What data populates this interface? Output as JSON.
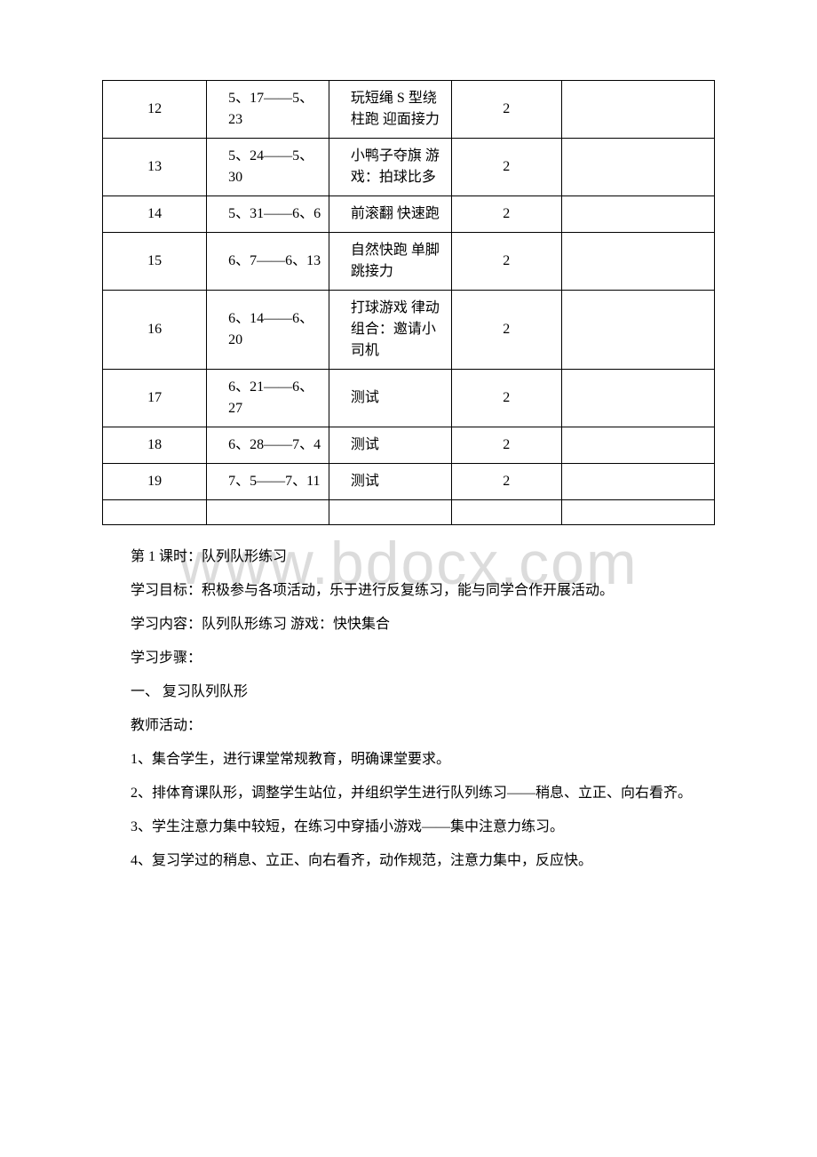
{
  "watermark": "www.bdocx.com",
  "table": {
    "columns_count": 5,
    "rows": [
      {
        "c1": "12",
        "c2": "5、17——5、23",
        "c3": "玩短绳 S 型绕柱跑 迎面接力",
        "c4": "2",
        "c5": ""
      },
      {
        "c1": "13",
        "c2": "5、24——5、30",
        "c3": "小鸭子夺旗 游戏：拍球比多",
        "c4": "2",
        "c5": ""
      },
      {
        "c1": "14",
        "c2": "5、31——6、6",
        "c3": "前滚翻 快速跑",
        "c4": "2",
        "c5": ""
      },
      {
        "c1": "15",
        "c2": "6、7——6、13",
        "c3": "自然快跑 单脚跳接力",
        "c4": "2",
        "c5": ""
      },
      {
        "c1": "16",
        "c2": "6、14——6、20",
        "c3": "打球游戏 律动组合：邀请小司机",
        "c4": "2",
        "c5": ""
      },
      {
        "c1": "17",
        "c2": "6、21——6、27",
        "c3": "测试",
        "c4": "2",
        "c5": ""
      },
      {
        "c1": "18",
        "c2": "6、28——7、4",
        "c3": "测试",
        "c4": "2",
        "c5": ""
      },
      {
        "c1": "19",
        "c2": "7、5——7、11",
        "c3": "测试",
        "c4": "2",
        "c5": ""
      }
    ]
  },
  "paragraphs": {
    "p1": "第 1 课时：队列队形练习",
    "p2": "学习目标：积极参与各项活动，乐于进行反复练习，能与同学合作开展活动。",
    "p3": "学习内容：队列队形练习 游戏：快快集合",
    "p4": "学习步骤：",
    "p5": "一、 复习队列队形",
    "p6": "教师活动：",
    "p7": "1、集合学生，进行课堂常规教育，明确课堂要求。",
    "p8": "2、排体育课队形，调整学生站位，并组织学生进行队列练习——稍息、立正、向右看齐。",
    "p9": "3、学生注意力集中较短，在练习中穿插小游戏——集中注意力练习。",
    "p10": "4、复习学过的稍息、立正、向右看齐，动作规范，注意力集中，反应快。"
  }
}
